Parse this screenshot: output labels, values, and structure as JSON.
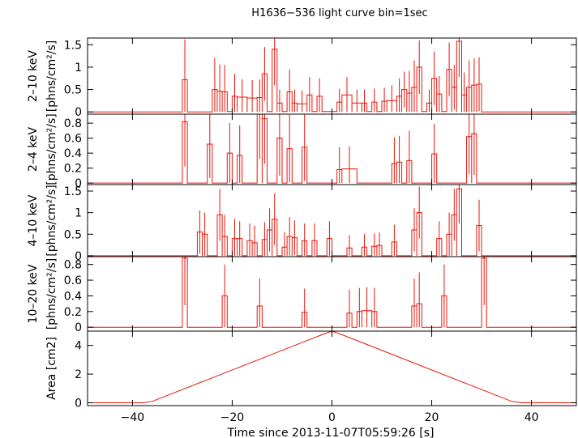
{
  "chart_data": {
    "type": "line",
    "title": "H1636−536 light curve bin=1sec",
    "xlabel": "Time since 2013-11-07T05:59:26 [s]",
    "xlim": [
      -49,
      49
    ],
    "xticks": [
      -40,
      -20,
      0,
      20,
      40
    ],
    "xtick_labels": [
      "−40",
      "−20",
      "0",
      "20",
      "40"
    ],
    "colors": {
      "series": "#e8140a",
      "axes": "#000000"
    },
    "panels": [
      {
        "ylabel_band": "2–10 keV",
        "ylabel_unit": "[phns/cm²/s]",
        "ylim": [
          -0.05,
          1.65
        ],
        "yticks": [
          0,
          0.5,
          1,
          1.5
        ],
        "ytick_labels": [
          "0",
          "0.5",
          "1",
          "1.5"
        ],
        "bins": [
          {
            "x0": -30,
            "x1": -29,
            "y": 0.72,
            "err": 0.9
          },
          {
            "x0": -24,
            "x1": -23,
            "y": 0.5,
            "err": 0.7
          },
          {
            "x0": -23,
            "x1": -22,
            "y": 0.46,
            "err": 0.6
          },
          {
            "x0": -22,
            "x1": -21,
            "y": 0.45,
            "err": 0.6
          },
          {
            "x0": -21,
            "x1": -20,
            "y": 0.01,
            "err": 0.0
          },
          {
            "x0": -20,
            "x1": -19,
            "y": 0.35,
            "err": 0.5
          },
          {
            "x0": -19,
            "x1": -17,
            "y": 0.33,
            "err": 0.4
          },
          {
            "x0": -17,
            "x1": -15,
            "y": 0.31,
            "err": 0.4
          },
          {
            "x0": -15,
            "x1": -14,
            "y": 0.32,
            "err": 0.4
          },
          {
            "x0": -14,
            "x1": -13,
            "y": 0.85,
            "err": 0.6
          },
          {
            "x0": -13,
            "x1": -12,
            "y": 0.01,
            "err": 0.0
          },
          {
            "x0": -12,
            "x1": -11,
            "y": 1.4,
            "err": 0.8
          },
          {
            "x0": -11,
            "x1": -10,
            "y": 0.2,
            "err": 0.3
          },
          {
            "x0": -10,
            "x1": -9,
            "y": 0.01,
            "err": 0.0
          },
          {
            "x0": -9,
            "x1": -8,
            "y": 0.45,
            "err": 0.5
          },
          {
            "x0": -8,
            "x1": -7,
            "y": 0.2,
            "err": 0.3
          },
          {
            "x0": -7,
            "x1": -5,
            "y": 0.18,
            "err": 0.3
          },
          {
            "x0": -5,
            "x1": -4,
            "y": 0.38,
            "err": 0.4
          },
          {
            "x0": -4,
            "x1": -3,
            "y": 0.01,
            "err": 0.0
          },
          {
            "x0": -3,
            "x1": -2,
            "y": 0.35,
            "err": 0.4
          },
          {
            "x0": -2,
            "x1": 1,
            "y": 0.01,
            "err": 0.0
          },
          {
            "x0": 1,
            "x1": 2,
            "y": 0.22,
            "err": 0.3
          },
          {
            "x0": 2,
            "x1": 4,
            "y": 0.38,
            "err": 0.4
          },
          {
            "x0": 4,
            "x1": 6,
            "y": 0.2,
            "err": 0.3
          },
          {
            "x0": 6,
            "x1": 7,
            "y": 0.2,
            "err": 0.3
          },
          {
            "x0": 7,
            "x1": 8,
            "y": 0.01,
            "err": 0.0
          },
          {
            "x0": 8,
            "x1": 9,
            "y": 0.22,
            "err": 0.3
          },
          {
            "x0": 9,
            "x1": 10,
            "y": 0.01,
            "err": 0.0
          },
          {
            "x0": 10,
            "x1": 11,
            "y": 0.24,
            "err": 0.3
          },
          {
            "x0": 11,
            "x1": 13,
            "y": 0.25,
            "err": 0.35
          },
          {
            "x0": 13,
            "x1": 14,
            "y": 0.35,
            "err": 0.4
          },
          {
            "x0": 14,
            "x1": 15,
            "y": 0.5,
            "err": 0.4
          },
          {
            "x0": 15,
            "x1": 16,
            "y": 0.42,
            "err": 0.5
          },
          {
            "x0": 16,
            "x1": 17,
            "y": 0.55,
            "err": 0.6
          },
          {
            "x0": 17,
            "x1": 18,
            "y": 1.0,
            "err": 0.6
          },
          {
            "x0": 18,
            "x1": 19,
            "y": 0.01,
            "err": 0.0
          },
          {
            "x0": 19,
            "x1": 20,
            "y": 0.2,
            "err": 0.3
          },
          {
            "x0": 20,
            "x1": 21,
            "y": 0.75,
            "err": 0.6
          },
          {
            "x0": 21,
            "x1": 22,
            "y": 0.4,
            "err": 0.4
          },
          {
            "x0": 22,
            "x1": 23,
            "y": 0.01,
            "err": 0.0
          },
          {
            "x0": 23,
            "x1": 24,
            "y": 0.95,
            "err": 0.6
          },
          {
            "x0": 24,
            "x1": 25,
            "y": 0.55,
            "err": 0.5
          },
          {
            "x0": 25,
            "x1": 26,
            "y": 1.58,
            "err": 0.8
          },
          {
            "x0": 26,
            "x1": 27,
            "y": 0.38,
            "err": 0.5
          },
          {
            "x0": 27,
            "x1": 28,
            "y": 0.55,
            "err": 0.6
          },
          {
            "x0": 28,
            "x1": 29,
            "y": 0.6,
            "err": 0.6
          },
          {
            "x0": 29,
            "x1": 30,
            "y": 0.62,
            "err": 0.6
          }
        ]
      },
      {
        "ylabel_band": "2–4 keV",
        "ylabel_unit": "[phns/cm²/s]",
        "ylim": [
          -0.02,
          0.92
        ],
        "yticks": [
          0,
          0.2,
          0.4,
          0.6,
          0.8
        ],
        "ytick_labels": [
          "0",
          "0.2",
          "0.4",
          "0.6",
          "0.8"
        ],
        "bins": [
          {
            "x0": -30,
            "x1": -29,
            "y": 0.82,
            "err": 0.6
          },
          {
            "x0": -25,
            "x1": -24,
            "y": 0.52,
            "err": 0.45
          },
          {
            "x0": -21,
            "x1": -20,
            "y": 0.4,
            "err": 0.4
          },
          {
            "x0": -19,
            "x1": -18,
            "y": 0.37,
            "err": 0.4
          },
          {
            "x0": -15,
            "x1": -14,
            "y": 0.92,
            "err": 0.6
          },
          {
            "x0": -14,
            "x1": -13,
            "y": 0.86,
            "err": 0.6
          },
          {
            "x0": -11,
            "x1": -10,
            "y": 0.6,
            "err": 0.5
          },
          {
            "x0": -9,
            "x1": -8,
            "y": 0.46,
            "err": 0.45
          },
          {
            "x0": -6,
            "x1": -5,
            "y": 0.48,
            "err": 0.45
          },
          {
            "x0": 1,
            "x1": 2,
            "y": 0.18,
            "err": 0.3
          },
          {
            "x0": 2,
            "x1": 5,
            "y": 0.19,
            "err": 0.3
          },
          {
            "x0": 12,
            "x1": 13,
            "y": 0.26,
            "err": 0.35
          },
          {
            "x0": 13,
            "x1": 14,
            "y": 0.28,
            "err": 0.35
          },
          {
            "x0": 15,
            "x1": 16,
            "y": 0.3,
            "err": 0.4
          },
          {
            "x0": 20,
            "x1": 21,
            "y": 0.39,
            "err": 0.4
          },
          {
            "x0": 27,
            "x1": 28,
            "y": 0.62,
            "err": 0.5
          },
          {
            "x0": 28,
            "x1": 29,
            "y": 0.66,
            "err": 0.55
          }
        ]
      },
      {
        "ylabel_band": "4–10 keV",
        "ylabel_unit": "[phns/cm²/s]",
        "ylim": [
          -0.02,
          1.65
        ],
        "yticks": [
          0,
          0.5,
          1,
          1.5
        ],
        "ytick_labels": [
          "0",
          "0.5",
          "1",
          "1.5"
        ],
        "bins": [
          {
            "x0": -27,
            "x1": -26,
            "y": 0.55,
            "err": 0.5
          },
          {
            "x0": -26,
            "x1": -25,
            "y": 0.5,
            "err": 0.5
          },
          {
            "x0": -23,
            "x1": -22,
            "y": 0.95,
            "err": 0.6
          },
          {
            "x0": -22,
            "x1": -21,
            "y": 0.45,
            "err": 0.5
          },
          {
            "x0": -20,
            "x1": -19,
            "y": 0.4,
            "err": 0.45
          },
          {
            "x0": -19,
            "x1": -18,
            "y": 0.4,
            "err": 0.4
          },
          {
            "x0": -17,
            "x1": -16,
            "y": 0.35,
            "err": 0.4
          },
          {
            "x0": -16,
            "x1": -15,
            "y": 0.3,
            "err": 0.4
          },
          {
            "x0": -14,
            "x1": -13,
            "y": 0.38,
            "err": 0.4
          },
          {
            "x0": -13,
            "x1": -12,
            "y": 0.6,
            "err": 0.5
          },
          {
            "x0": -12,
            "x1": -11,
            "y": 0.85,
            "err": 0.6
          },
          {
            "x0": -10,
            "x1": -9,
            "y": 0.2,
            "err": 0.35
          },
          {
            "x0": -9,
            "x1": -8,
            "y": 0.45,
            "err": 0.45
          },
          {
            "x0": -8,
            "x1": -7,
            "y": 0.42,
            "err": 0.4
          },
          {
            "x0": -6,
            "x1": -5,
            "y": 0.35,
            "err": 0.4
          },
          {
            "x0": -4,
            "x1": -3,
            "y": 0.35,
            "err": 0.4
          },
          {
            "x0": -1,
            "x1": 0,
            "y": 0.4,
            "err": 0.4
          },
          {
            "x0": 3,
            "x1": 4,
            "y": 0.18,
            "err": 0.3
          },
          {
            "x0": 6,
            "x1": 7,
            "y": 0.2,
            "err": 0.3
          },
          {
            "x0": 8,
            "x1": 9,
            "y": 0.22,
            "err": 0.3
          },
          {
            "x0": 9,
            "x1": 10,
            "y": 0.24,
            "err": 0.3
          },
          {
            "x0": 12,
            "x1": 13,
            "y": 0.32,
            "err": 0.4
          },
          {
            "x0": 16,
            "x1": 17,
            "y": 0.6,
            "err": 0.5
          },
          {
            "x0": 17,
            "x1": 18,
            "y": 1.0,
            "err": 0.6
          },
          {
            "x0": 21,
            "x1": 22,
            "y": 0.4,
            "err": 0.4
          },
          {
            "x0": 23,
            "x1": 24,
            "y": 0.5,
            "err": 0.5
          },
          {
            "x0": 24,
            "x1": 25,
            "y": 0.95,
            "err": 0.6
          },
          {
            "x0": 25,
            "x1": 26,
            "y": 1.55,
            "err": 0.8
          },
          {
            "x0": 29,
            "x1": 30,
            "y": 0.7,
            "err": 0.6
          }
        ]
      },
      {
        "ylabel_band": "10–20 keV",
        "ylabel_unit": "[phns/cm²/s]",
        "ylim": [
          -0.05,
          0.9
        ],
        "yticks": [
          0,
          0.2,
          0.4,
          0.6,
          0.8
        ],
        "ytick_labels": [
          "0",
          "0.2",
          "0.4",
          "0.6",
          "0.8"
        ],
        "bins": [
          {
            "x0": -30,
            "x1": -29,
            "y": 0.88,
            "err": 0.6
          },
          {
            "x0": -22,
            "x1": -21,
            "y": 0.4,
            "err": 0.4
          },
          {
            "x0": -15,
            "x1": -14,
            "y": 0.27,
            "err": 0.35
          },
          {
            "x0": -6,
            "x1": -5,
            "y": 0.19,
            "err": 0.3
          },
          {
            "x0": 3,
            "x1": 4,
            "y": 0.18,
            "err": 0.3
          },
          {
            "x0": 5,
            "x1": 6,
            "y": 0.2,
            "err": 0.3
          },
          {
            "x0": 6,
            "x1": 8,
            "y": 0.21,
            "err": 0.3
          },
          {
            "x0": 8,
            "x1": 9,
            "y": 0.2,
            "err": 0.3
          },
          {
            "x0": 16,
            "x1": 17,
            "y": 0.27,
            "err": 0.35
          },
          {
            "x0": 17,
            "x1": 18,
            "y": 0.3,
            "err": 0.4
          },
          {
            "x0": 22,
            "x1": 23,
            "y": 0.4,
            "err": 0.4
          },
          {
            "x0": 30,
            "x1": 31,
            "y": 0.88,
            "err": 0.6
          }
        ]
      },
      {
        "ylabel": "Area [cm2]",
        "ylim": [
          -0.2,
          5.0
        ],
        "yticks": [
          0,
          2,
          4
        ],
        "ytick_labels": [
          "0",
          "2",
          "4"
        ],
        "line": [
          [
            -49,
            0
          ],
          [
            -38,
            0
          ],
          [
            -36,
            0.1
          ],
          [
            -2,
            4.75
          ],
          [
            0,
            5.0
          ],
          [
            2,
            4.75
          ],
          [
            36,
            0.1
          ],
          [
            38,
            0
          ],
          [
            49,
            0
          ]
        ]
      }
    ]
  }
}
